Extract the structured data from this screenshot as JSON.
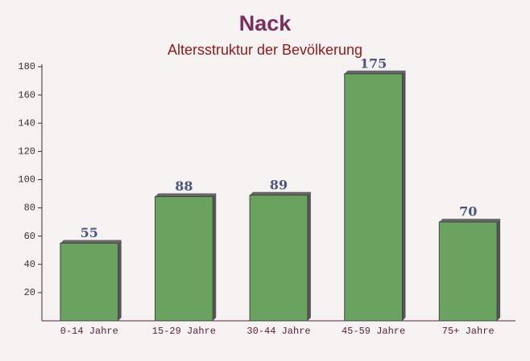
{
  "chart_data": {
    "type": "bar",
    "title": "Nack",
    "subtitle": "Altersstruktur der Bevölkerung",
    "categories": [
      "0-14 Jahre",
      "15-29 Jahre",
      "30-44 Jahre",
      "45-59 Jahre",
      "75+ Jahre"
    ],
    "values": [
      55,
      88,
      89,
      175,
      70
    ],
    "color": "#6aa360",
    "ylim": [
      0,
      180
    ],
    "yticks": [
      20,
      40,
      60,
      80,
      100,
      120,
      140,
      160,
      180
    ],
    "grid": false
  }
}
